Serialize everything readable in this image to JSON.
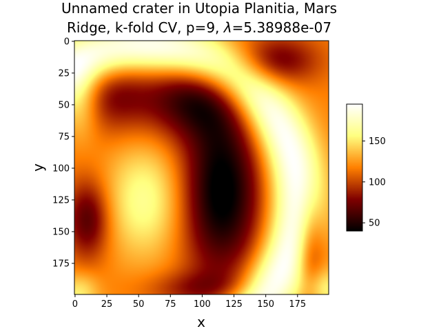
{
  "chart_data": {
    "type": "heatmap",
    "title_line1": "Unnamed crater in Utopia Planitia, Mars",
    "title_line2": "Ridge, k-fold CV, p=9, λ=5.38988e-07",
    "xlabel": "x",
    "ylabel": "y",
    "xlim": [
      0,
      199
    ],
    "ylim": [
      199,
      0
    ],
    "xticks": [
      "0",
      "25",
      "50",
      "75",
      "100",
      "125",
      "150",
      "175"
    ],
    "yticks": [
      "0",
      "25",
      "50",
      "75",
      "100",
      "125",
      "150",
      "175"
    ],
    "colormap": "afmhot",
    "colorbar": {
      "range": [
        40,
        195
      ],
      "ticks": [
        "50",
        "100",
        "150"
      ]
    },
    "approx_features": [
      {
        "x": 120,
        "y": 120,
        "value": 42,
        "note": "dark basin"
      },
      {
        "x": 55,
        "y": 125,
        "value": 160,
        "note": "bright inner region"
      },
      {
        "x": 175,
        "y": 100,
        "value": 195,
        "note": "bright ridge arc"
      },
      {
        "x": 10,
        "y": 140,
        "value": 80,
        "note": "dark left lobe"
      },
      {
        "x": 160,
        "y": 15,
        "value": 90,
        "note": "dark upper right"
      }
    ]
  }
}
